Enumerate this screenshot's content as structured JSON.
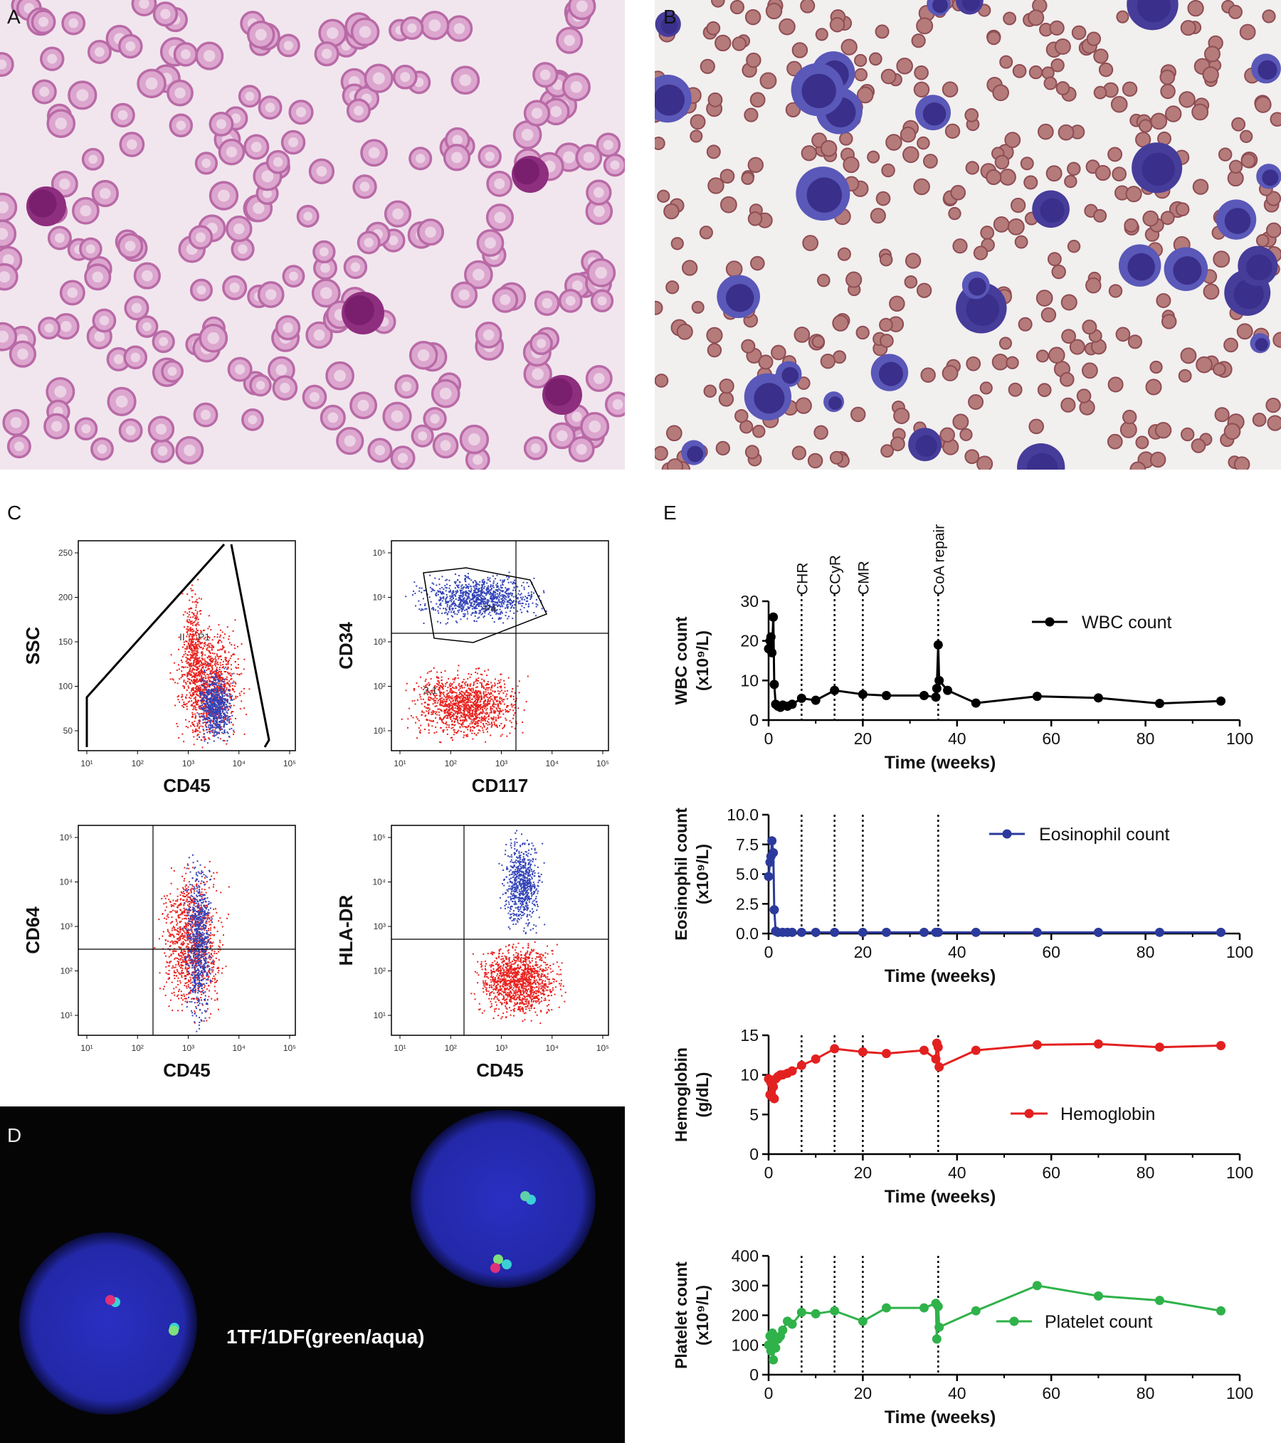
{
  "figure": {
    "panels": {
      "A": {
        "label": "A"
      },
      "B": {
        "label": "B"
      },
      "C": {
        "label": "C",
        "plots": [
          {
            "xlabel": "CD45",
            "ylabel": "SSC",
            "y_ticks": [
              "50",
              "100",
              "150",
              "200",
              "250"
            ],
            "gate_labels": [
              "II",
              "P1"
            ]
          },
          {
            "xlabel": "CD117",
            "ylabel": "CD34",
            "gate_labels": [
              "P4",
              "3.1"
            ]
          },
          {
            "xlabel": "CD45",
            "ylabel": "CD64"
          },
          {
            "xlabel": "CD45",
            "ylabel": "HLA-DR"
          }
        ]
      },
      "D": {
        "label": "D",
        "caption": "1TF/1DF(green/aqua)"
      },
      "E": {
        "label": "E"
      }
    }
  },
  "colors": {
    "wbc": "#000000",
    "eosinophil": "#2b3a9c",
    "hemoglobin": "#e32020",
    "platelet": "#2fb24a",
    "flow_red": "#e8211d",
    "flow_blue": "#3344b8"
  },
  "chart_data": [
    {
      "type": "line",
      "xlabel": "Time (weeks)",
      "ylabel": "WBC count (x10⁹/L)",
      "xlim": [
        0,
        100
      ],
      "ylim": [
        0,
        30
      ],
      "x_ticks": [
        0,
        20,
        40,
        60,
        80,
        100
      ],
      "y_ticks": [
        0,
        10,
        20,
        30
      ],
      "annotations": [
        {
          "x": 7,
          "label": "CHR"
        },
        {
          "x": 14,
          "label": "CCyR"
        },
        {
          "x": 20,
          "label": "CMR"
        },
        {
          "x": 36,
          "label": "CoA repair"
        }
      ],
      "series": [
        {
          "name": "WBC count",
          "x": [
            0,
            0.3,
            0.5,
            0.7,
            1,
            1.2,
            1.5,
            2,
            2.5,
            3,
            4,
            5,
            7,
            10,
            14,
            20,
            25,
            33,
            35.5,
            35.7,
            36,
            36.2,
            38,
            44,
            57,
            70,
            83,
            96
          ],
          "y": [
            18,
            20,
            21,
            17,
            26,
            9,
            4,
            3.5,
            3.2,
            3.8,
            3.5,
            4,
            5.5,
            5,
            7.5,
            6.5,
            6.2,
            6.2,
            5.8,
            8,
            19,
            10,
            7.5,
            4.3,
            6,
            5.6,
            4.2,
            4.8
          ]
        }
      ]
    },
    {
      "type": "line",
      "xlabel": "Time (weeks)",
      "ylabel": "Eosinophil count (x10⁹/L)",
      "xlim": [
        0,
        100
      ],
      "ylim": [
        0,
        10
      ],
      "x_ticks": [
        0,
        20,
        40,
        60,
        80,
        100
      ],
      "y_ticks": [
        "0.0",
        "2.5",
        "5.0",
        "7.5",
        "10.0"
      ],
      "annotations": [
        {
          "x": 7
        },
        {
          "x": 14
        },
        {
          "x": 20
        },
        {
          "x": 36
        }
      ],
      "series": [
        {
          "name": "Eosinophil count",
          "x": [
            0,
            0.3,
            0.5,
            0.7,
            1,
            1.2,
            1.5,
            2,
            3,
            4,
            5,
            7,
            10,
            14,
            20,
            25,
            33,
            35.5,
            36,
            44,
            57,
            70,
            83,
            96
          ],
          "y": [
            4.8,
            6,
            6.5,
            7.8,
            6.8,
            2,
            0.2,
            0.1,
            0.1,
            0.1,
            0.1,
            0.1,
            0.1,
            0.1,
            0.1,
            0.1,
            0.1,
            0.1,
            0.1,
            0.1,
            0.1,
            0.1,
            0.1,
            0.1
          ]
        }
      ]
    },
    {
      "type": "line",
      "xlabel": "Time (weeks)",
      "ylabel": "Hemoglobin (g/dL)",
      "xlim": [
        0,
        100
      ],
      "ylim": [
        0,
        15
      ],
      "x_ticks": [
        0,
        20,
        40,
        60,
        80,
        100
      ],
      "y_ticks": [
        0,
        5,
        10,
        15
      ],
      "annotations": [
        {
          "x": 7
        },
        {
          "x": 14
        },
        {
          "x": 20
        },
        {
          "x": 36
        }
      ],
      "series": [
        {
          "name": "Hemoglobin",
          "x": [
            0,
            0.3,
            0.5,
            0.8,
            1,
            1.2,
            1.5,
            2,
            2.5,
            3,
            4,
            5,
            7,
            10,
            14,
            20,
            25,
            33,
            35.5,
            35.7,
            36,
            36.2,
            44,
            57,
            70,
            83,
            96
          ],
          "y": [
            9.5,
            7.5,
            9,
            7.2,
            8.5,
            7,
            9.5,
            9.8,
            10,
            10,
            10.2,
            10.5,
            11.2,
            12,
            13.3,
            12.9,
            12.7,
            13.1,
            12,
            14,
            13.5,
            11,
            13.1,
            13.8,
            13.9,
            13.5,
            13.7
          ]
        }
      ]
    },
    {
      "type": "line",
      "xlabel": "Time (weeks)",
      "ylabel": "Platelet count (x10⁹/L)",
      "xlim": [
        0,
        100
      ],
      "ylim": [
        0,
        400
      ],
      "x_ticks": [
        0,
        20,
        40,
        60,
        80,
        100
      ],
      "y_ticks": [
        0,
        100,
        200,
        300,
        400
      ],
      "annotations": [
        {
          "x": 7
        },
        {
          "x": 14
        },
        {
          "x": 20
        },
        {
          "x": 36
        }
      ],
      "series": [
        {
          "name": "Platelet count",
          "x": [
            0,
            0.3,
            0.5,
            0.8,
            1,
            1.2,
            1.5,
            2,
            2.5,
            3,
            4,
            5,
            7,
            10,
            14,
            20,
            25,
            33,
            35.5,
            35.7,
            36,
            36.2,
            44,
            57,
            70,
            83,
            96
          ],
          "y": [
            100,
            130,
            80,
            140,
            50,
            110,
            90,
            120,
            130,
            150,
            180,
            170,
            210,
            205,
            215,
            180,
            225,
            225,
            240,
            120,
            230,
            160,
            215,
            300,
            265,
            250,
            215
          ]
        }
      ]
    }
  ]
}
